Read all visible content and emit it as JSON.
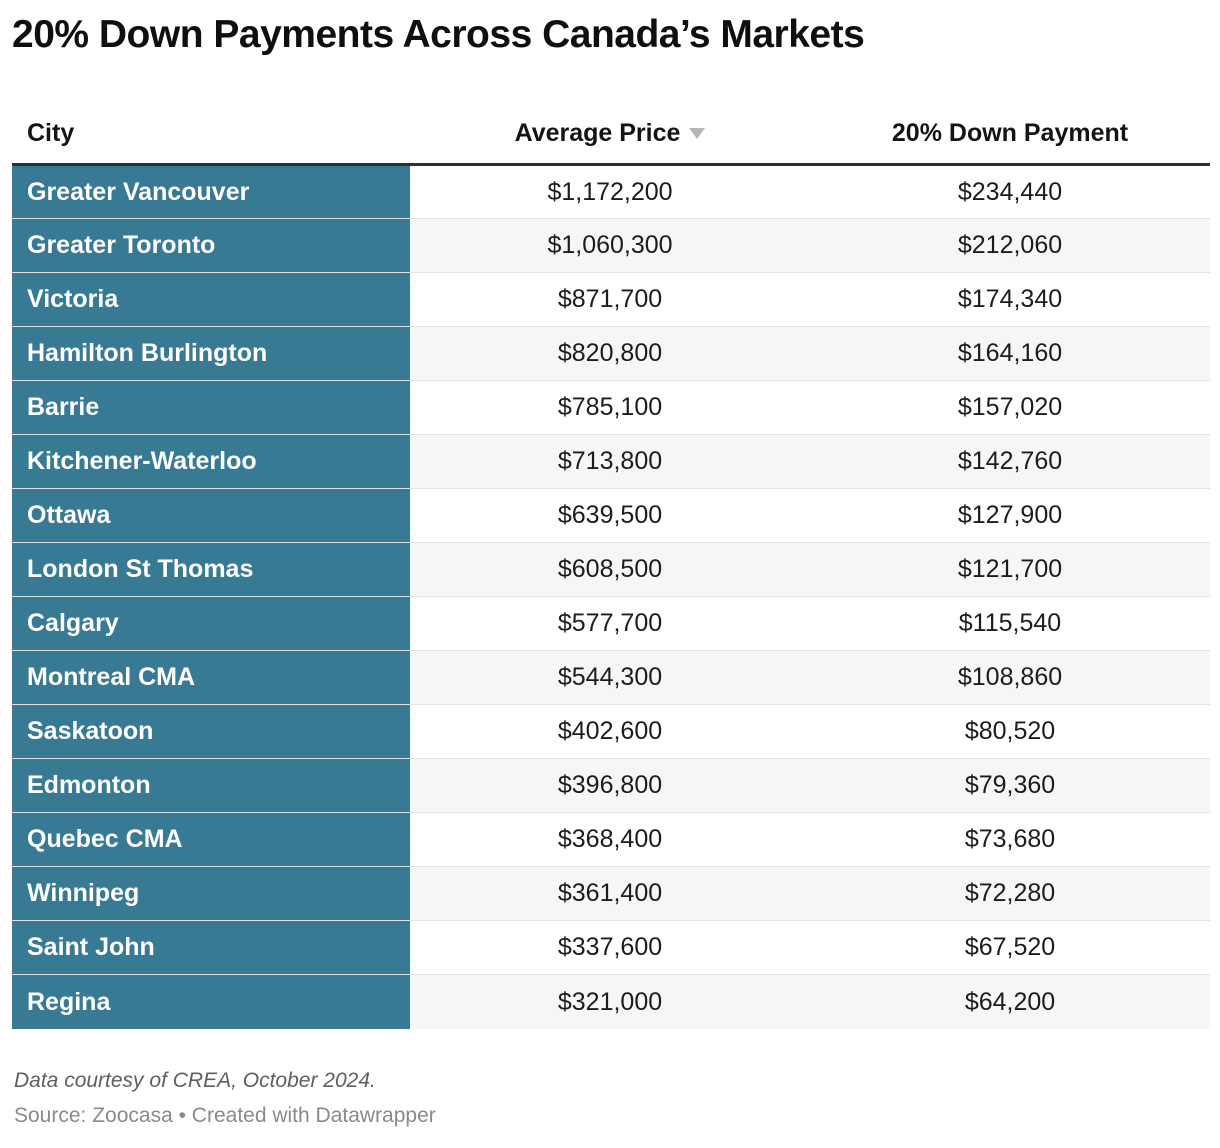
{
  "title": "20% Down Payments Across Canada’s Markets",
  "chart_data": {
    "type": "table",
    "title": "20% Down Payments Across Canada’s Markets",
    "columns": [
      "City",
      "Average Price",
      "20% Down Payment"
    ],
    "sort": {
      "column": "Average Price",
      "direction": "descending"
    },
    "rows": [
      {
        "city": "Greater Vancouver",
        "average_price": 1172200,
        "down_payment": 234440
      },
      {
        "city": "Greater Toronto",
        "average_price": 1060300,
        "down_payment": 212060
      },
      {
        "city": "Victoria",
        "average_price": 871700,
        "down_payment": 174340
      },
      {
        "city": "Hamilton Burlington",
        "average_price": 820800,
        "down_payment": 164160
      },
      {
        "city": "Barrie",
        "average_price": 785100,
        "down_payment": 157020
      },
      {
        "city": "Kitchener-Waterloo",
        "average_price": 713800,
        "down_payment": 142760
      },
      {
        "city": "Ottawa",
        "average_price": 639500,
        "down_payment": 127900
      },
      {
        "city": "London St Thomas",
        "average_price": 608500,
        "down_payment": 121700
      },
      {
        "city": "Calgary",
        "average_price": 577700,
        "down_payment": 115540
      },
      {
        "city": "Montreal CMA",
        "average_price": 544300,
        "down_payment": 108860
      },
      {
        "city": "Saskatoon",
        "average_price": 402600,
        "down_payment": 80520
      },
      {
        "city": "Edmonton",
        "average_price": 396800,
        "down_payment": 79360
      },
      {
        "city": "Quebec CMA",
        "average_price": 368400,
        "down_payment": 73680
      },
      {
        "city": "Winnipeg",
        "average_price": 361400,
        "down_payment": 72280
      },
      {
        "city": "Saint John",
        "average_price": 337600,
        "down_payment": 67520
      },
      {
        "city": "Regina",
        "average_price": 321000,
        "down_payment": 64200
      }
    ]
  },
  "table": {
    "columns": [
      {
        "label": "City"
      },
      {
        "label": "Average Price",
        "sort": "descending"
      },
      {
        "label": "20% Down Payment"
      }
    ],
    "rows": [
      {
        "city": "Greater Vancouver",
        "avg_price": "$1,172,200",
        "down_payment": "$234,440"
      },
      {
        "city": "Greater Toronto",
        "avg_price": "$1,060,300",
        "down_payment": "$212,060"
      },
      {
        "city": "Victoria",
        "avg_price": "$871,700",
        "down_payment": "$174,340"
      },
      {
        "city": "Hamilton Burlington",
        "avg_price": "$820,800",
        "down_payment": "$164,160"
      },
      {
        "city": "Barrie",
        "avg_price": "$785,100",
        "down_payment": "$157,020"
      },
      {
        "city": "Kitchener-Waterloo",
        "avg_price": "$713,800",
        "down_payment": "$142,760"
      },
      {
        "city": "Ottawa",
        "avg_price": "$639,500",
        "down_payment": "$127,900"
      },
      {
        "city": "London St Thomas",
        "avg_price": "$608,500",
        "down_payment": "$121,700"
      },
      {
        "city": "Calgary",
        "avg_price": "$577,700",
        "down_payment": "$115,540"
      },
      {
        "city": "Montreal CMA",
        "avg_price": "$544,300",
        "down_payment": "$108,860"
      },
      {
        "city": "Saskatoon",
        "avg_price": "$402,600",
        "down_payment": "$80,520"
      },
      {
        "city": "Edmonton",
        "avg_price": "$396,800",
        "down_payment": "$79,360"
      },
      {
        "city": "Quebec CMA",
        "avg_price": "$368,400",
        "down_payment": "$73,680"
      },
      {
        "city": "Winnipeg",
        "avg_price": "$361,400",
        "down_payment": "$72,280"
      },
      {
        "city": "Saint John",
        "avg_price": "$337,600",
        "down_payment": "$67,520"
      },
      {
        "city": "Regina",
        "avg_price": "$321,000",
        "down_payment": "$64,200"
      }
    ]
  },
  "footer": {
    "note": "Data courtesy of CREA, October 2024.",
    "source_label": "Source: ",
    "source_name": "Zoocasa",
    "separator": " • ",
    "created_with": "Created with ",
    "tool_name": "Datawrapper"
  },
  "colors": {
    "city_column_bg": "#387994",
    "city_text": "#ffffff",
    "alt_row_bg": "#f6f6f6",
    "header_rule": "#2e2e2e",
    "row_divider": "#e4e4e4",
    "sort_arrow": "#b5b5b5",
    "body_text": "#1c1c1c",
    "note_text": "#5f5f5f",
    "source_text": "#8a8a8a"
  }
}
